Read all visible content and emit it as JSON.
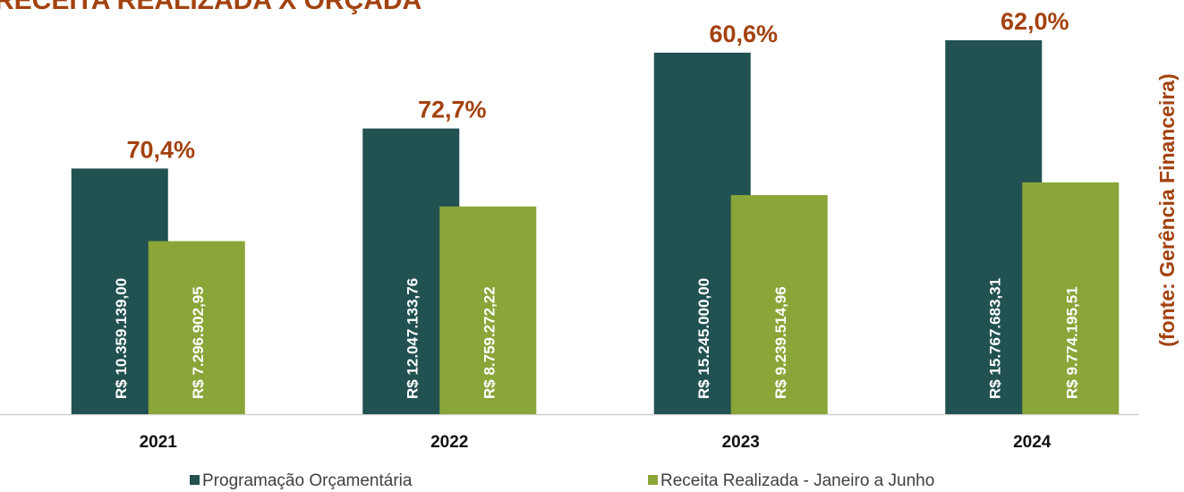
{
  "chart_data": {
    "type": "bar",
    "title": "RECEITA REALIZADA X ORÇADA",
    "source": "(fonte: Gerência Financeira)",
    "categories": [
      "2021",
      "2022",
      "2023",
      "2024"
    ],
    "series": [
      {
        "name": "Programação Orçamentária",
        "color": "#225152",
        "values": [
          10359139.0,
          12047133.76,
          15245000.0,
          15767683.31
        ],
        "value_labels": [
          "R$ 10.359.139,00",
          "R$ 12.047.133,76",
          "R$ 15.245.000,00",
          "R$ 15.767.683,31"
        ]
      },
      {
        "name": "Receita Realizada - Janeiro a Junho",
        "color": "#8aa538",
        "values": [
          7296902.95,
          8759272.22,
          9239514.96,
          9774195.51
        ],
        "value_labels": [
          "R$ 7.296.902,95",
          "R$ 8.759.272,22",
          "R$ 9.239.514,96",
          "R$ 9.774.195,51"
        ]
      }
    ],
    "annotations": [
      "70,4%",
      "72,7%",
      "60,6%",
      "62,0%"
    ],
    "ylim": [
      0,
      16500000
    ]
  }
}
